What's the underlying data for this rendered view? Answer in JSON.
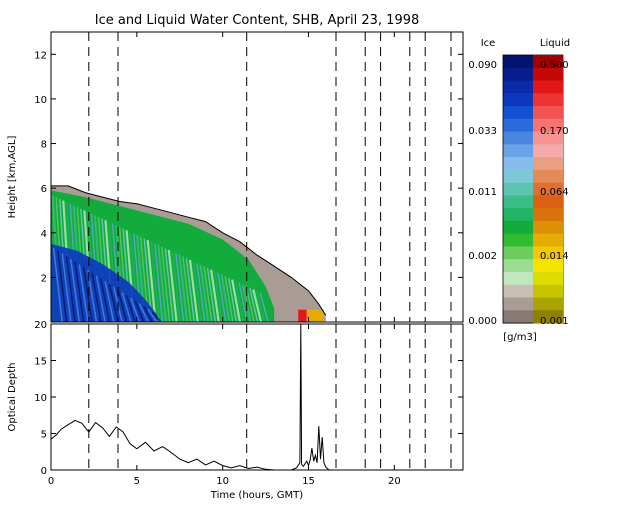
{
  "chart_data": [
    {
      "type": "heatmap",
      "title": "Ice and Liquid Water Content, SHB, April 23, 1998",
      "ylabel": "Height [km,AGL]",
      "xlim": [
        0,
        24
      ],
      "ylim": [
        0,
        13
      ],
      "xticks": [
        "0",
        "5",
        "10",
        "15",
        "20"
      ],
      "yticks": [
        "2",
        "4",
        "6",
        "8",
        "10",
        "12"
      ],
      "dashed_lines_x": [
        2.2,
        3.9,
        11.4,
        16.6,
        18.3,
        19.2,
        20.9,
        21.8,
        23.3
      ],
      "cloud_top": [
        [
          0,
          6.1
        ],
        [
          1,
          6.1
        ],
        [
          2,
          5.8
        ],
        [
          3,
          5.6
        ],
        [
          4,
          5.4
        ],
        [
          5,
          5.3
        ],
        [
          6,
          5.1
        ],
        [
          7,
          4.9
        ],
        [
          8,
          4.7
        ],
        [
          9,
          4.5
        ],
        [
          10,
          4.0
        ],
        [
          11,
          3.6
        ],
        [
          12,
          3.0
        ],
        [
          13,
          2.5
        ],
        [
          14,
          2.0
        ],
        [
          15,
          1.4
        ],
        [
          15.6,
          0.8
        ],
        [
          16.0,
          0.3
        ]
      ],
      "ice_region_top": [
        [
          0,
          5.9
        ],
        [
          2,
          5.6
        ],
        [
          4,
          5.2
        ],
        [
          6,
          4.8
        ],
        [
          8,
          4.4
        ],
        [
          10,
          3.7
        ],
        [
          11.5,
          2.8
        ],
        [
          12.5,
          1.6
        ],
        [
          13,
          0.6
        ]
      ],
      "dense_ice_top": [
        [
          0,
          3.5
        ],
        [
          1.5,
          3.2
        ],
        [
          3,
          2.6
        ],
        [
          4.5,
          1.8
        ],
        [
          5.5,
          1.0
        ],
        [
          6.2,
          0.3
        ]
      ],
      "liquid_patch": {
        "x_start": 14.4,
        "x_end": 15.9,
        "height_top": 0.55
      }
    },
    {
      "type": "line",
      "ylabel": "Optical Depth",
      "xlabel": "Time (hours, GMT)",
      "xlim": [
        0,
        24
      ],
      "ylim": [
        0,
        20
      ],
      "xticks": [
        "0",
        "5",
        "10",
        "15",
        "20"
      ],
      "yticks": [
        "0",
        "5",
        "10",
        "15",
        "20"
      ],
      "x": [
        0,
        0.3,
        0.6,
        1.0,
        1.4,
        1.8,
        2.2,
        2.6,
        3.0,
        3.4,
        3.8,
        4.2,
        4.6,
        5.0,
        5.5,
        6.0,
        6.5,
        7.0,
        7.5,
        8.0,
        8.5,
        9.0,
        9.5,
        10.0,
        10.5,
        11.0,
        11.5,
        12.0,
        12.5,
        13.0,
        13.5,
        14.0,
        14.3,
        14.5,
        14.55,
        14.6,
        14.7,
        14.9,
        15.0,
        15.1,
        15.2,
        15.3,
        15.4,
        15.5,
        15.6,
        15.7,
        15.8,
        15.9,
        16.0,
        16.2
      ],
      "y": [
        4.2,
        4.8,
        5.6,
        6.2,
        6.8,
        6.4,
        5.2,
        6.5,
        5.8,
        4.6,
        5.9,
        5.2,
        3.6,
        2.9,
        3.8,
        2.6,
        3.2,
        2.4,
        1.5,
        1.0,
        1.5,
        0.7,
        1.2,
        0.6,
        0.3,
        0.6,
        0.2,
        0.4,
        0.1,
        0.0,
        0.0,
        0.0,
        0.3,
        1.0,
        20.0,
        0.8,
        0.5,
        1.2,
        0.6,
        1.4,
        3.0,
        1.2,
        2.0,
        1.0,
        6.0,
        1.5,
        4.5,
        1.0,
        0.4,
        0.0
      ]
    }
  ],
  "colorbar": {
    "ice_header": "Ice",
    "liquid_header": "Liquid",
    "unit": "[g/m3]",
    "ice_ticks": [
      "0.090",
      "0.033",
      "0.011",
      "0.002",
      "0.000"
    ],
    "liquid_ticks": [
      "0.500",
      "0.170",
      "0.064",
      "0.014",
      "0.001"
    ],
    "ice_colors": [
      "#04146e",
      "#081c8c",
      "#0a2aa8",
      "#0c38c0",
      "#1250d4",
      "#2a6ada",
      "#4a86e0",
      "#6aa4e8",
      "#86bcec",
      "#7cc8d8",
      "#5cc4b0",
      "#3cbc88",
      "#22b464",
      "#12ac3c",
      "#30bc30",
      "#6ccc5c",
      "#9cdc90",
      "#c0e8bc",
      "#c8c0b4",
      "#a89c94",
      "#8a7a76"
    ],
    "liquid_colors": [
      "#a00000",
      "#c40808",
      "#e01818",
      "#ec3434",
      "#f25454",
      "#f47474",
      "#f69494",
      "#f4aaaa",
      "#e8a080",
      "#e48a58",
      "#e07030",
      "#dc6014",
      "#d8740a",
      "#dc9006",
      "#e4ac04",
      "#f0c800",
      "#f4e400",
      "#dcdc00",
      "#c8c400",
      "#a8a400",
      "#908000"
    ]
  }
}
